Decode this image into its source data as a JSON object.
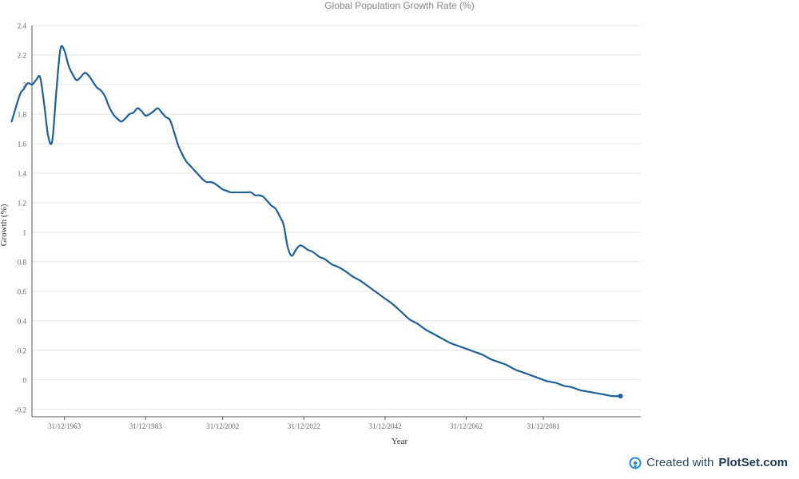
{
  "chart_data": {
    "type": "line",
    "title": "Global Population Growth Rate (%)",
    "xlabel": "Year",
    "ylabel": "Growth (%)",
    "x_tick_labels": [
      "31/12/1963",
      "31/12/1983",
      "31/12/2002",
      "31/12/2022",
      "31/12/2042",
      "31/12/2062",
      "31/12/2081"
    ],
    "x_tick_years": [
      1963,
      1983,
      2002,
      2022,
      2042,
      2062,
      2081
    ],
    "xlim": [
      1955,
      2105
    ],
    "ylim": [
      -0.25,
      2.4
    ],
    "y_ticks": [
      -0.2,
      0,
      0.2,
      0.4,
      0.6,
      0.8,
      1,
      1.2,
      1.4,
      1.6,
      1.8,
      2,
      2.2,
      2.4
    ],
    "grid": true,
    "series": [
      {
        "color": "#1f5f99",
        "x": [
          1950,
          1952,
          1953,
          1954,
          1955,
          1956,
          1957,
          1958,
          1959,
          1960,
          1961,
          1962,
          1963,
          1964,
          1965,
          1966,
          1967,
          1968,
          1969,
          1970,
          1971,
          1972,
          1973,
          1974,
          1975,
          1976,
          1977,
          1978,
          1979,
          1980,
          1981,
          1982,
          1983,
          1984,
          1985,
          1986,
          1987,
          1988,
          1989,
          1990,
          1991,
          1992,
          1993,
          1994,
          1995,
          1996,
          1997,
          1998,
          1999,
          2000,
          2001,
          2002,
          2003,
          2004,
          2005,
          2006,
          2007,
          2008,
          2009,
          2010,
          2011,
          2012,
          2013,
          2014,
          2015,
          2016,
          2017,
          2018,
          2019,
          2020,
          2021,
          2022,
          2023,
          2024,
          2025,
          2026,
          2027,
          2028,
          2029,
          2030,
          2032,
          2034,
          2036,
          2038,
          2040,
          2042,
          2044,
          2046,
          2048,
          2050,
          2052,
          2054,
          2056,
          2058,
          2060,
          2062,
          2064,
          2066,
          2068,
          2070,
          2072,
          2074,
          2076,
          2078,
          2080,
          2082,
          2084,
          2086,
          2088,
          2090,
          2092,
          2094,
          2096,
          2098,
          2100
        ],
        "values": [
          1.75,
          1.93,
          1.97,
          2.01,
          2.0,
          2.03,
          2.05,
          1.87,
          1.65,
          1.62,
          1.95,
          2.24,
          2.23,
          2.13,
          2.07,
          2.03,
          2.05,
          2.08,
          2.06,
          2.02,
          1.98,
          1.96,
          1.92,
          1.85,
          1.8,
          1.77,
          1.75,
          1.77,
          1.8,
          1.81,
          1.84,
          1.82,
          1.79,
          1.8,
          1.82,
          1.84,
          1.81,
          1.78,
          1.76,
          1.68,
          1.59,
          1.53,
          1.48,
          1.45,
          1.42,
          1.39,
          1.36,
          1.34,
          1.34,
          1.33,
          1.31,
          1.29,
          1.28,
          1.27,
          1.27,
          1.27,
          1.27,
          1.27,
          1.27,
          1.25,
          1.25,
          1.24,
          1.21,
          1.18,
          1.16,
          1.11,
          1.05,
          0.9,
          0.84,
          0.88,
          0.91,
          0.9,
          0.88,
          0.87,
          0.85,
          0.83,
          0.82,
          0.8,
          0.78,
          0.77,
          0.74,
          0.7,
          0.67,
          0.63,
          0.59,
          0.55,
          0.51,
          0.46,
          0.41,
          0.38,
          0.34,
          0.31,
          0.28,
          0.25,
          0.23,
          0.21,
          0.19,
          0.17,
          0.14,
          0.12,
          0.1,
          0.07,
          0.05,
          0.03,
          0.01,
          -0.01,
          -0.02,
          -0.04,
          -0.05,
          -0.07,
          -0.08,
          -0.09,
          -0.1,
          -0.11,
          -0.11
        ]
      }
    ]
  },
  "credit": {
    "prefix": "Created with",
    "brand": "PlotSet.com"
  },
  "colors": {
    "line": "#1f5f99",
    "grid": "#e5e5e5",
    "axis": "#555555",
    "tick_text": "#666666"
  }
}
